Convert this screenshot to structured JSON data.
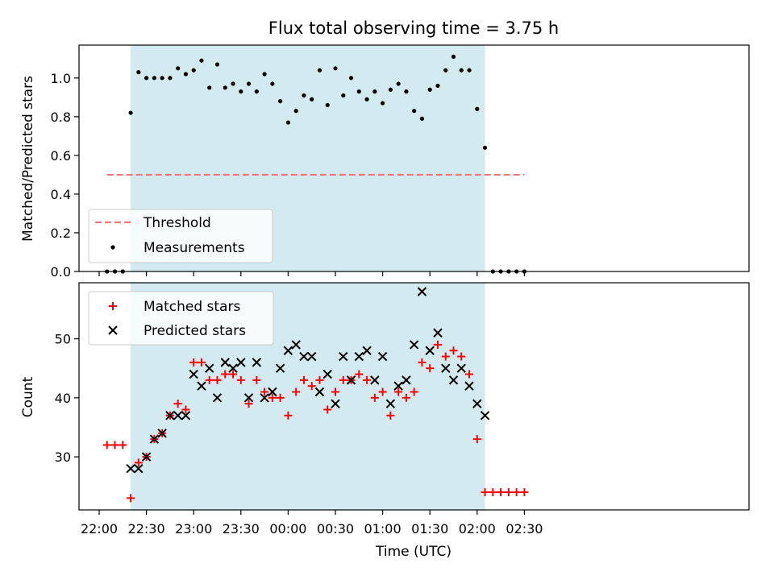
{
  "chart_data": {
    "type": "scatter",
    "title": "Flux total observing time = 3.75 h",
    "xlabel": "Time (UTC)",
    "x_tick_labels": [
      "22:00",
      "22:30",
      "23:00",
      "23:30",
      "00:00",
      "00:30",
      "01:00",
      "01:30",
      "02:00",
      "02:30"
    ],
    "x_ticks_minutes": [
      0,
      30,
      60,
      90,
      120,
      150,
      180,
      210,
      240,
      270
    ],
    "x_unit": "minutes after 22:00 UTC",
    "observing_window": [
      20,
      245
    ],
    "shade_color": "#d3eaf0",
    "panels": [
      {
        "name": "ratio",
        "ylabel": "Matched/Predicted stars",
        "ylim": [
          0,
          1.17
        ],
        "y_ticks": [
          0.0,
          0.2,
          0.4,
          0.6,
          0.8,
          1.0
        ],
        "y_tick_labels": [
          "0.0",
          "0.2",
          "0.4",
          "0.6",
          "0.8",
          "1.0"
        ],
        "legend_position": "lower-left",
        "series": [
          {
            "name": "Threshold",
            "kind": "dashed-line",
            "color": "#f07878",
            "x": [
              5,
              270
            ],
            "y": [
              0.5,
              0.5
            ]
          },
          {
            "name": "Measurements",
            "kind": "dot",
            "color": "#000000",
            "x": [
              5,
              10,
              15,
              20,
              25,
              30,
              35,
              40,
              45,
              50,
              55,
              60,
              65,
              70,
              75,
              80,
              85,
              90,
              95,
              100,
              105,
              110,
              115,
              120,
              125,
              130,
              135,
              140,
              145,
              150,
              155,
              160,
              165,
              170,
              175,
              180,
              185,
              190,
              195,
              200,
              205,
              210,
              215,
              220,
              225,
              230,
              235,
              240,
              245,
              250,
              255,
              260,
              265,
              270
            ],
            "y": [
              0.0,
              0.0,
              0.0,
              0.82,
              1.03,
              1.0,
              1.0,
              1.0,
              1.0,
              1.05,
              1.02,
              1.04,
              1.09,
              0.95,
              1.07,
              0.95,
              0.97,
              0.93,
              0.97,
              0.93,
              1.02,
              0.97,
              0.88,
              0.77,
              0.83,
              0.91,
              0.89,
              1.04,
              0.86,
              1.05,
              0.91,
              1.0,
              0.93,
              0.89,
              0.93,
              0.87,
              0.94,
              0.97,
              0.93,
              0.83,
              0.79,
              0.94,
              0.96,
              1.04,
              1.11,
              1.04,
              1.04,
              0.84,
              0.64,
              0.0,
              0.0,
              0.0,
              0.0,
              0.0
            ]
          }
        ]
      },
      {
        "name": "count",
        "ylabel": "Count",
        "ylim": [
          21,
          59.5
        ],
        "y_ticks": [
          30,
          40,
          50
        ],
        "y_tick_labels": [
          "30",
          "40",
          "50"
        ],
        "legend_position": "upper-left",
        "series": [
          {
            "name": "Matched stars",
            "kind": "plus",
            "color": "#ff0000",
            "x": [
              5,
              10,
              15,
              20,
              25,
              30,
              35,
              40,
              45,
              50,
              55,
              60,
              65,
              70,
              75,
              80,
              85,
              90,
              95,
              100,
              105,
              110,
              115,
              120,
              125,
              130,
              135,
              140,
              145,
              150,
              155,
              160,
              165,
              170,
              175,
              180,
              185,
              190,
              195,
              200,
              205,
              210,
              215,
              220,
              225,
              230,
              235,
              240,
              245,
              250,
              255,
              260,
              265,
              270
            ],
            "y": [
              32,
              32,
              32,
              23,
              29,
              30,
              33,
              34,
              37,
              39,
              38,
              46,
              46,
              43,
              43,
              44,
              44,
              43,
              39,
              43,
              41,
              40,
              40,
              37,
              41,
              43,
              42,
              43,
              38,
              41,
              43,
              43,
              44,
              43,
              40,
              41,
              37,
              41,
              40,
              41,
              46,
              45,
              49,
              47,
              48,
              47,
              44,
              33,
              24,
              24,
              24,
              24,
              24,
              24
            ]
          },
          {
            "name": "Predicted stars",
            "kind": "cross",
            "color": "#000000",
            "x": [
              20,
              25,
              30,
              35,
              40,
              45,
              50,
              55,
              60,
              65,
              70,
              75,
              80,
              85,
              90,
              95,
              100,
              105,
              110,
              115,
              120,
              125,
              130,
              135,
              140,
              145,
              150,
              155,
              160,
              165,
              170,
              175,
              180,
              185,
              190,
              195,
              200,
              205,
              210,
              215,
              220,
              225,
              230,
              235,
              240,
              245
            ],
            "y": [
              28,
              28,
              30,
              33,
              34,
              37,
              37,
              37,
              44,
              42,
              45,
              40,
              46,
              45,
              46,
              40,
              46,
              40,
              41,
              45,
              48,
              49,
              47,
              47,
              41,
              44,
              39,
              47,
              43,
              47,
              48,
              43,
              47,
              39,
              42,
              43,
              49,
              58,
              48,
              51,
              45,
              43,
              45,
              42,
              39,
              37
            ]
          }
        ]
      }
    ]
  }
}
